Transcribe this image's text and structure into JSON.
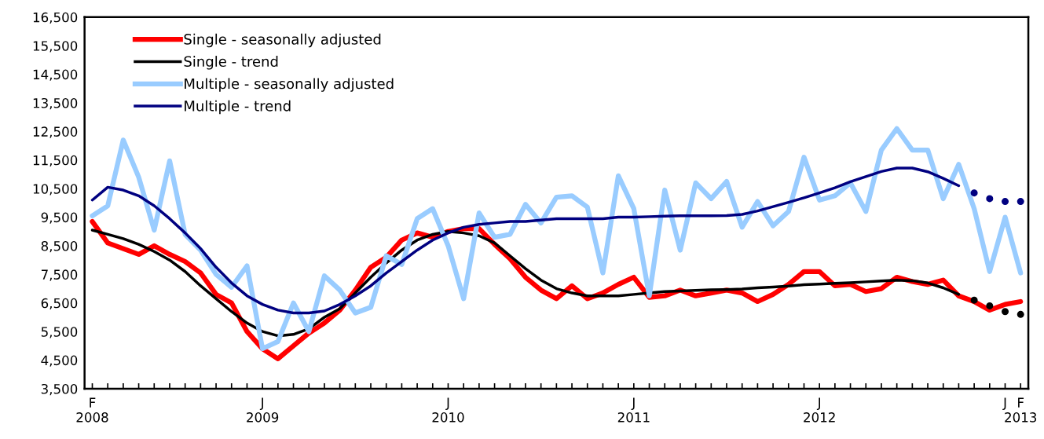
{
  "chart_data": {
    "type": "line",
    "categories": [
      "F\n2008",
      null,
      null,
      null,
      null,
      null,
      null,
      null,
      null,
      null,
      null,
      "J\n2009",
      null,
      null,
      null,
      null,
      null,
      null,
      null,
      null,
      null,
      null,
      null,
      "J\n2010",
      null,
      null,
      null,
      null,
      null,
      null,
      null,
      null,
      null,
      null,
      null,
      "J\n2011",
      null,
      null,
      null,
      null,
      null,
      null,
      null,
      null,
      null,
      null,
      null,
      "J\n2012",
      null,
      null,
      null,
      null,
      null,
      null,
      null,
      null,
      null,
      null,
      null,
      "J",
      "F\n2013"
    ],
    "series": [
      {
        "name": "Single - seasonally adjusted",
        "color": "#ff0000",
        "values": [
          9350,
          8600,
          8400,
          8200,
          8500,
          8200,
          7950,
          7550,
          6800,
          6500,
          5500,
          4900,
          4550,
          5000,
          5450,
          5800,
          6250,
          6950,
          7750,
          8100,
          8700,
          8950,
          8800,
          9000,
          9100,
          9100,
          8550,
          8050,
          7400,
          6950,
          6650,
          7100,
          6650,
          6850,
          7150,
          7400,
          6700,
          6750,
          6950,
          6750,
          6850,
          6950,
          6850,
          6550,
          6800,
          7150,
          7600,
          7600,
          7100,
          7150,
          6900,
          7000,
          7400,
          7250,
          7150,
          7300,
          6750,
          6550,
          6250,
          6450,
          6550
        ]
      },
      {
        "name": "Single - trend",
        "color": "#000000",
        "values": [
          9050,
          8900,
          8750,
          8550,
          8300,
          8000,
          7600,
          7100,
          6650,
          6200,
          5800,
          5500,
          5350,
          5400,
          5600,
          6000,
          6300,
          6850,
          7400,
          7900,
          8350,
          8700,
          8900,
          9000,
          8950,
          8850,
          8600,
          8150,
          7700,
          7300,
          7000,
          6850,
          6750,
          6750,
          6750,
          6800,
          6850,
          6900,
          6920,
          6940,
          6960,
          6970,
          6990,
          7030,
          7060,
          7090,
          7140,
          7160,
          7190,
          7210,
          7240,
          7270,
          7300,
          7280,
          7200,
          7030,
          6800,
          null,
          null,
          null,
          null
        ]
      },
      {
        "name": "Multiple - seasonally adjusted",
        "color": "#99ccff",
        "values": [
          9550,
          9900,
          12200,
          10900,
          9050,
          11470,
          8900,
          8350,
          7500,
          7050,
          7800,
          4900,
          5150,
          6500,
          5500,
          7450,
          6950,
          6150,
          6350,
          8150,
          7850,
          9450,
          9800,
          8500,
          6650,
          9650,
          8800,
          8900,
          9950,
          9300,
          10200,
          10250,
          9850,
          7550,
          10950,
          9800,
          6750,
          10450,
          8350,
          10700,
          10150,
          10750,
          9150,
          10050,
          9200,
          9700,
          11600,
          10100,
          10250,
          10700,
          9700,
          11850,
          12600,
          11850,
          11850,
          10150,
          11350,
          9800,
          7600,
          9500,
          7550
        ]
      },
      {
        "name": "Multiple - trend",
        "color": "#000080",
        "values": [
          10100,
          10550,
          10450,
          10250,
          9900,
          9450,
          8950,
          8400,
          7750,
          7200,
          6750,
          6450,
          6250,
          6150,
          6150,
          6220,
          6450,
          6750,
          7100,
          7550,
          7950,
          8350,
          8700,
          8950,
          9150,
          9250,
          9300,
          9350,
          9350,
          9400,
          9450,
          9450,
          9450,
          9450,
          9500,
          9500,
          9520,
          9540,
          9550,
          9550,
          9550,
          9560,
          9600,
          9720,
          9870,
          10020,
          10180,
          10350,
          10530,
          10740,
          10920,
          11100,
          11220,
          11220,
          11090,
          10860,
          10600,
          null,
          null,
          null,
          null
        ]
      },
      {
        "type": "scatter",
        "marker": "circle",
        "color": "#000000",
        "values": [
          null,
          null,
          null,
          null,
          null,
          null,
          null,
          null,
          null,
          null,
          null,
          null,
          null,
          null,
          null,
          null,
          null,
          null,
          null,
          null,
          null,
          null,
          null,
          null,
          null,
          null,
          null,
          null,
          null,
          null,
          null,
          null,
          null,
          null,
          null,
          null,
          null,
          null,
          null,
          null,
          null,
          null,
          null,
          null,
          null,
          null,
          null,
          null,
          null,
          null,
          null,
          null,
          null,
          null,
          null,
          null,
          null,
          6600,
          6400,
          6200,
          6100
        ]
      },
      {
        "type": "scatter",
        "marker": "circle",
        "color": "#000080",
        "values": [
          null,
          null,
          null,
          null,
          null,
          null,
          null,
          null,
          null,
          null,
          null,
          null,
          null,
          null,
          null,
          null,
          null,
          null,
          null,
          null,
          null,
          null,
          null,
          null,
          null,
          null,
          null,
          null,
          null,
          null,
          null,
          null,
          null,
          null,
          null,
          null,
          null,
          null,
          null,
          null,
          null,
          null,
          null,
          null,
          null,
          null,
          null,
          null,
          null,
          null,
          null,
          null,
          null,
          null,
          null,
          null,
          null,
          10350,
          10150,
          10050,
          10050
        ]
      }
    ],
    "ylim": [
      3500,
      16500
    ],
    "yticks": [
      {
        "value": 3500,
        "label": "3,500"
      },
      {
        "value": 4500,
        "label": "4,500"
      },
      {
        "value": 5500,
        "label": "5,500"
      },
      {
        "value": 6500,
        "label": "6,500"
      },
      {
        "value": 7500,
        "label": "7,500"
      },
      {
        "value": 8500,
        "label": "8,500"
      },
      {
        "value": 9500,
        "label": "9,500"
      },
      {
        "value": 10500,
        "label": "10,500"
      },
      {
        "value": 11500,
        "label": "11,500"
      },
      {
        "value": 12500,
        "label": "12,500"
      },
      {
        "value": 13500,
        "label": "13,500"
      },
      {
        "value": 14500,
        "label": "14,500"
      },
      {
        "value": 15500,
        "label": "15,500"
      },
      {
        "value": 16500,
        "label": "16,500"
      }
    ],
    "legend": "top left"
  }
}
